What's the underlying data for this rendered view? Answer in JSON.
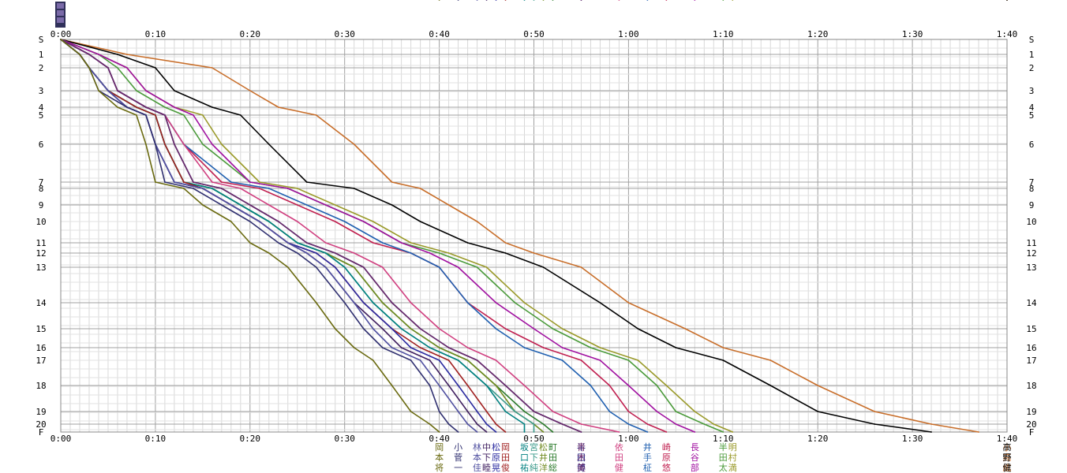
{
  "chart_data": {
    "type": "line",
    "title": "",
    "xlabel": "",
    "ylabel": "",
    "x_unit": "minutes",
    "xlim": [
      0,
      100
    ],
    "x_tick_labels": [
      "0:00",
      "0:10",
      "0:20",
      "0:30",
      "0:40",
      "0:50",
      "1:00",
      "1:10",
      "1:20",
      "1:30",
      "1:40"
    ],
    "controls": [
      "S",
      "1",
      "2",
      "3",
      "4",
      "5",
      "6",
      "7",
      "8",
      "9",
      "10",
      "11",
      "12",
      "13",
      "14",
      "15",
      "16",
      "17",
      "18",
      "19",
      "20",
      "F"
    ],
    "grid": true,
    "series": [
      {
        "color": "#c86e2a",
        "x": [
          0,
          7,
          16,
          20,
          23,
          27,
          31,
          35,
          38,
          41,
          44,
          47,
          50,
          55,
          60,
          66,
          70,
          75,
          80,
          86,
          92,
          97,
          100
        ],
        "labels": [
          "小",
          "高",
          "紘"
        ]
      },
      {
        "color": "#000000",
        "x": [
          0,
          6,
          10,
          12,
          16,
          19,
          22,
          26,
          31,
          35,
          38,
          43,
          47,
          51,
          57,
          61,
          65,
          70,
          75,
          80,
          86,
          92,
          100
        ],
        "labels": [
          "高",
          "野",
          "健"
        ]
      },
      {
        "color": "#9a9a2a",
        "x": [
          0,
          4,
          7,
          9,
          12,
          15,
          17,
          21,
          25,
          29,
          33,
          37,
          41,
          45,
          49,
          53,
          57,
          61,
          64,
          67,
          69,
          71,
          71
        ],
        "labels": [
          "明",
          "村",
          "満"
        ]
      },
      {
        "color": "#4a9a3a",
        "x": [
          0,
          4,
          6,
          8,
          11,
          13,
          15,
          20,
          24,
          28,
          32,
          36,
          40,
          44,
          48,
          52,
          56,
          60,
          63,
          65,
          68,
          70,
          70
        ],
        "labels": [
          "半",
          "田",
          "太"
        ]
      },
      {
        "color": "#a010a0",
        "x": [
          0,
          4,
          7,
          9,
          12,
          14,
          16,
          20,
          24,
          28,
          32,
          36,
          39,
          42,
          46,
          50,
          53,
          57,
          60,
          63,
          65,
          67,
          67
        ],
        "labels": [
          "長",
          "谷",
          "部"
        ]
      },
      {
        "color": "#c02050",
        "x": [
          0,
          3,
          5,
          6,
          9,
          11,
          13,
          17,
          21,
          25,
          29,
          33,
          37,
          40,
          43,
          47,
          51,
          55,
          58,
          60,
          62,
          64,
          64
        ],
        "labels": [
          "崎",
          "原",
          "悠"
        ]
      },
      {
        "color": "#2060b0",
        "x": [
          0,
          3,
          5,
          6,
          9,
          11,
          13,
          18,
          22,
          26,
          30,
          34,
          37,
          40,
          43,
          46,
          49,
          53,
          56,
          58,
          60,
          62,
          62
        ],
        "labels": [
          "井",
          "手",
          "柾"
        ]
      },
      {
        "color": "#d04080",
        "x": [
          0,
          3,
          5,
          6,
          9,
          11,
          13,
          16,
          19,
          22,
          25,
          28,
          31,
          34,
          37,
          40,
          43,
          46,
          49,
          52,
          55,
          59,
          59
        ],
        "labels": [
          "依",
          "田",
          "健"
        ]
      },
      {
        "color": "#202080",
        "x": [
          0,
          3,
          5,
          6,
          9,
          11,
          12,
          14,
          17,
          20,
          23,
          26,
          29,
          32,
          35,
          38,
          41,
          44,
          47,
          50,
          53,
          55,
          55
        ],
        "labels": [
          "半",
          "田",
          "博"
        ]
      },
      {
        "color": "#6a2a6a",
        "x": [
          0,
          3,
          5,
          6,
          9,
          11,
          12,
          14,
          17,
          20,
          23,
          26,
          29,
          32,
          35,
          38,
          41,
          44,
          47,
          50,
          53,
          55,
          55
        ],
        "labels": [
          "青",
          "木",
          "美"
        ]
      },
      {
        "color": "#2a7a2a",
        "x": [
          0,
          2,
          3,
          5,
          8,
          10,
          11,
          13,
          16,
          19,
          22,
          25,
          28,
          31,
          34,
          37,
          40,
          43,
          46,
          49,
          51,
          52,
          52
        ],
        "labels": [
          "町",
          "田",
          "総"
        ]
      },
      {
        "color": "#708a20",
        "x": [
          0,
          2,
          3,
          5,
          8,
          10,
          11,
          13,
          16,
          19,
          22,
          25,
          28,
          31,
          34,
          37,
          40,
          43,
          46,
          48,
          50,
          51,
          51
        ],
        "labels": [
          "松",
          "井",
          "洋"
        ]
      },
      {
        "color": "#3a9a8a",
        "x": [
          0,
          2,
          3,
          5,
          8,
          10,
          11,
          13,
          16,
          19,
          22,
          25,
          28,
          30,
          33,
          36,
          39,
          42,
          45,
          48,
          50,
          50,
          50
        ],
        "labels": [
          "宮",
          "下",
          "純"
        ]
      },
      {
        "color": "#008080",
        "x": [
          0,
          2,
          3,
          5,
          8,
          10,
          11,
          13,
          16,
          19,
          22,
          25,
          28,
          30,
          33,
          36,
          39,
          42,
          45,
          47,
          49,
          49,
          49
        ],
        "labels": [
          "坂",
          "口",
          "祐"
        ]
      },
      {
        "color": "#a02020",
        "x": [
          0,
          2,
          3,
          5,
          8,
          10,
          11,
          13,
          15,
          18,
          21,
          24,
          27,
          29,
          32,
          35,
          38,
          41,
          43,
          45,
          46,
          47,
          47
        ],
        "labels": [
          "岡",
          "田",
          "俊"
        ]
      },
      {
        "color": "#2a2aa0",
        "x": [
          0,
          2,
          3,
          5,
          7,
          9,
          10,
          12,
          15,
          18,
          21,
          24,
          27,
          29,
          32,
          35,
          37,
          40,
          42,
          44,
          45,
          46,
          46
        ],
        "labels": [
          "松",
          "原",
          "晃"
        ]
      },
      {
        "color": "#402060",
        "x": [
          0,
          2,
          3,
          5,
          7,
          9,
          10,
          12,
          15,
          18,
          21,
          24,
          26,
          28,
          31,
          34,
          36,
          39,
          41,
          43,
          44,
          45,
          45
        ],
        "labels": [
          "中",
          "下",
          "睦"
        ]
      },
      {
        "color": "#5050a0",
        "x": [
          0,
          2,
          3,
          5,
          7,
          9,
          10,
          12,
          15,
          18,
          21,
          24,
          26,
          28,
          31,
          33,
          35,
          38,
          40,
          42,
          43,
          44,
          44
        ],
        "labels": [
          "林",
          "本",
          "佳"
        ]
      },
      {
        "color": "#303070",
        "x": [
          0,
          2,
          3,
          4,
          7,
          9,
          10,
          11,
          14,
          17,
          20,
          23,
          25,
          27,
          30,
          32,
          34,
          37,
          39,
          40,
          41,
          42,
          42
        ],
        "labels": [
          "小",
          "菅",
          "一"
        ]
      },
      {
        "color": "#6a6a10",
        "x": [
          0,
          2,
          3,
          4,
          6,
          8,
          9,
          10,
          13,
          15,
          18,
          20,
          22,
          24,
          27,
          29,
          31,
          33,
          35,
          37,
          39,
          40,
          40
        ],
        "labels": [
          "岡",
          "本",
          "将"
        ]
      }
    ]
  }
}
